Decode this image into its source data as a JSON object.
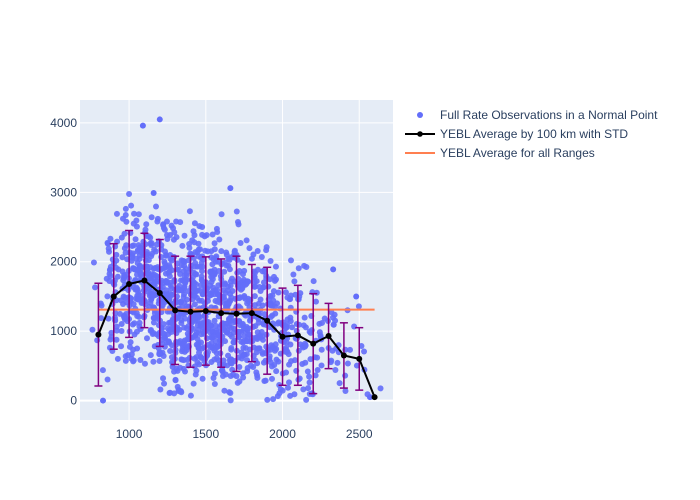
{
  "chart_data": {
    "type": "scatter",
    "title": "",
    "xlabel": "",
    "ylabel": "",
    "xlim": [
      680,
      2720
    ],
    "ylim": [
      -280,
      4330
    ],
    "x_ticks": [
      1000,
      1500,
      2000,
      2500
    ],
    "y_ticks": [
      0,
      1000,
      2000,
      3000,
      4000
    ],
    "grid": true,
    "legend_position": "right",
    "colors": {
      "scatter": "#636efa",
      "average_line": "#000000",
      "error_bars": "#800080",
      "overall_line": "#ff7f50",
      "plot_bg": "#e5ecf6",
      "grid": "#ffffff",
      "text": "#2a3f5f"
    },
    "series": [
      {
        "name": "Full Rate Observations in a Normal Point",
        "kind": "scatter",
        "note": "dense cloud of individual observations spanning x≈800–2600, y≈0–4050",
        "density_by_100km": [
          {
            "x": 800,
            "count": 8
          },
          {
            "x": 900,
            "count": 50
          },
          {
            "x": 1000,
            "count": 90
          },
          {
            "x": 1100,
            "count": 110
          },
          {
            "x": 1200,
            "count": 120
          },
          {
            "x": 1300,
            "count": 130
          },
          {
            "x": 1400,
            "count": 130
          },
          {
            "x": 1500,
            "count": 130
          },
          {
            "x": 1600,
            "count": 120
          },
          {
            "x": 1700,
            "count": 110
          },
          {
            "x": 1800,
            "count": 90
          },
          {
            "x": 1900,
            "count": 70
          },
          {
            "x": 2000,
            "count": 55
          },
          {
            "x": 2100,
            "count": 40
          },
          {
            "x": 2200,
            "count": 30
          },
          {
            "x": 2300,
            "count": 18
          },
          {
            "x": 2400,
            "count": 10
          },
          {
            "x": 2500,
            "count": 6
          },
          {
            "x": 2600,
            "count": 2
          }
        ],
        "notable_points": [
          {
            "x": 1090,
            "y": 3960
          },
          {
            "x": 1200,
            "y": 4050
          },
          {
            "x": 1660,
            "y": 3060
          },
          {
            "x": 1160,
            "y": 2990
          },
          {
            "x": 830,
            "y": 0
          },
          {
            "x": 2570,
            "y": 50
          },
          {
            "x": 2480,
            "y": 1500
          },
          {
            "x": 2330,
            "y": 1890
          }
        ]
      },
      {
        "name": "YEBL Average by 100 km with STD",
        "kind": "line_errorbar",
        "x": [
          800,
          900,
          1000,
          1100,
          1200,
          1300,
          1400,
          1500,
          1600,
          1700,
          1800,
          1900,
          2000,
          2100,
          2200,
          2300,
          2400,
          2500,
          2600
        ],
        "y": [
          950,
          1500,
          1680,
          1730,
          1550,
          1300,
          1280,
          1290,
          1260,
          1250,
          1260,
          1150,
          920,
          940,
          820,
          930,
          650,
          600,
          50
        ],
        "std": [
          740,
          760,
          770,
          680,
          770,
          780,
          800,
          780,
          780,
          830,
          700,
          770,
          700,
          720,
          720,
          470,
          470,
          450,
          0
        ]
      },
      {
        "name": "YEBL Average for all Ranges",
        "kind": "hline",
        "x": [
          800,
          2600
        ],
        "y": [
          1310,
          1310
        ]
      }
    ]
  }
}
